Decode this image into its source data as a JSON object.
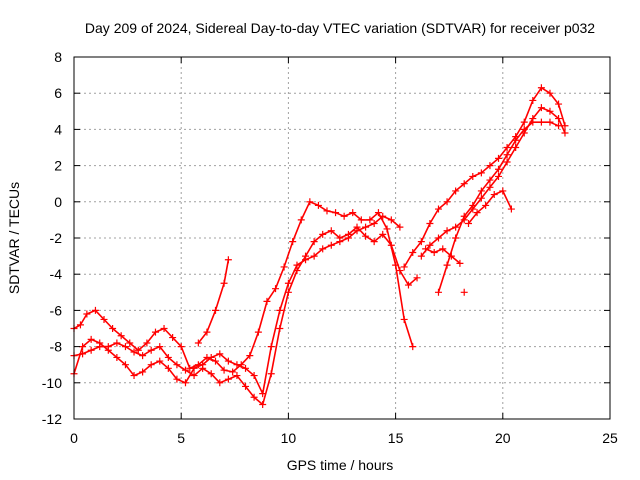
{
  "chart_data": {
    "type": "scatter",
    "title": "Day 209 of 2024, Sidereal Day-to-day VTEC variation (SDTVAR) for receiver p032",
    "xlabel": "GPS time / hours",
    "ylabel": "SDTVAR / TECUs",
    "xlim": [
      0,
      25
    ],
    "ylim": [
      -12,
      8
    ],
    "xticks": [
      0,
      5,
      10,
      15,
      20,
      25
    ],
    "yticks": [
      -12,
      -10,
      -8,
      -6,
      -4,
      -2,
      0,
      2,
      4,
      6,
      8
    ],
    "grid": true,
    "legend": "none",
    "marker": "plus",
    "series_color": "#ff0000",
    "series": [
      {
        "x": [
          0.0,
          0.3,
          0.6,
          1.0,
          1.4,
          1.8,
          2.2,
          2.6,
          3.0,
          3.4,
          3.8,
          4.2,
          4.6,
          5.0,
          5.4,
          5.8,
          6.2,
          6.6,
          7.0,
          7.4,
          7.8,
          8.2,
          8.6,
          9.0,
          9.4,
          9.8,
          10.2,
          10.6,
          11.0,
          11.4,
          11.8,
          12.2,
          12.6,
          13.0,
          13.4,
          13.8,
          14.2,
          14.6,
          15.0,
          15.4,
          15.8
        ],
        "y": [
          -7.0,
          -6.8,
          -6.2,
          -6.0,
          -6.5,
          -7.0,
          -7.4,
          -7.8,
          -8.2,
          -7.8,
          -7.2,
          -7.0,
          -7.5,
          -8.0,
          -9.2,
          -9.0,
          -8.6,
          -8.8,
          -9.3,
          -9.4,
          -9.0,
          -8.5,
          -7.2,
          -5.5,
          -4.8,
          -3.6,
          -2.2,
          -1.0,
          0.0,
          -0.2,
          -0.5,
          -0.6,
          -0.8,
          -0.6,
          -1.0,
          -1.0,
          -0.6,
          -1.5,
          -3.5,
          -6.5,
          -8.0
        ]
      },
      {
        "x": [
          0.0,
          0.4,
          0.8,
          1.2,
          1.6,
          2.0,
          2.4,
          2.8,
          3.2,
          3.6,
          4.0,
          4.4,
          4.8,
          5.2,
          5.6,
          6.0,
          6.4,
          6.8,
          7.2,
          7.6,
          8.0,
          8.4,
          8.8,
          9.2,
          9.6,
          10.0,
          10.4,
          10.8,
          11.2,
          11.6,
          12.0,
          12.4,
          12.8,
          13.2,
          13.6,
          14.0,
          14.4,
          14.8,
          15.2,
          15.6,
          16.0
        ],
        "y": [
          -8.5,
          -8.4,
          -8.2,
          -8.0,
          -8.0,
          -7.8,
          -8.0,
          -8.3,
          -8.5,
          -8.2,
          -8.0,
          -8.6,
          -9.0,
          -9.3,
          -9.6,
          -9.2,
          -9.5,
          -10.0,
          -9.8,
          -9.6,
          -10.2,
          -10.8,
          -11.2,
          -9.5,
          -7.0,
          -5.0,
          -3.8,
          -3.0,
          -2.2,
          -1.8,
          -1.6,
          -2.0,
          -1.8,
          -1.4,
          -1.9,
          -2.2,
          -1.8,
          -2.4,
          -3.8,
          -4.6,
          -4.2
        ]
      },
      {
        "x": [
          0.0,
          0.4,
          0.8,
          1.2,
          1.6,
          2.0,
          2.4,
          2.8,
          3.2,
          3.6,
          4.0,
          4.4,
          4.8,
          5.2,
          5.6,
          6.0,
          6.4,
          6.8,
          7.2,
          7.6,
          8.0,
          8.4,
          8.8,
          9.2,
          9.6,
          10.0,
          10.4,
          10.8,
          11.2,
          11.6,
          12.0,
          12.4,
          12.8,
          13.2,
          13.6,
          14.0,
          14.4,
          14.8,
          15.2
        ],
        "y": [
          -9.5,
          -8.0,
          -7.6,
          -7.8,
          -8.2,
          -8.6,
          -9.0,
          -9.6,
          -9.4,
          -9.0,
          -8.8,
          -9.2,
          -9.8,
          -10.0,
          -9.2,
          -9.0,
          -8.6,
          -8.4,
          -8.8,
          -9.0,
          -9.2,
          -9.6,
          -10.6,
          -8.0,
          -6.0,
          -4.5,
          -3.5,
          -3.2,
          -3.0,
          -2.6,
          -2.4,
          -2.2,
          -2.0,
          -1.6,
          -1.4,
          -1.2,
          -0.8,
          -1.0,
          -1.4
        ]
      },
      {
        "x": [
          5.8,
          6.2,
          6.6,
          7.0,
          7.2
        ],
        "y": [
          -7.8,
          -7.2,
          -6.0,
          -4.5,
          -3.2
        ]
      },
      {
        "x": [
          15.4,
          15.8,
          16.2,
          16.6,
          17.0,
          17.4,
          17.8,
          18.2,
          18.6,
          19.0,
          19.4,
          19.8,
          20.2,
          20.6,
          21.0,
          21.4,
          21.8,
          22.2,
          22.6,
          22.9
        ],
        "y": [
          -3.6,
          -2.8,
          -2.2,
          -1.2,
          -0.4,
          0.0,
          0.6,
          1.0,
          1.4,
          1.6,
          2.0,
          2.4,
          3.0,
          3.6,
          4.4,
          5.6,
          6.3,
          6.0,
          5.4,
          4.2
        ]
      },
      {
        "x": [
          16.2,
          16.6,
          17.0,
          17.4,
          17.8,
          18.2,
          18.6,
          19.0,
          19.4,
          19.8,
          20.2,
          20.6,
          21.0,
          21.4,
          21.8,
          22.2,
          22.6,
          22.9
        ],
        "y": [
          -3.0,
          -2.4,
          -2.0,
          -1.6,
          -1.4,
          -1.0,
          -0.4,
          0.2,
          0.8,
          1.4,
          2.2,
          3.0,
          3.8,
          4.6,
          5.2,
          5.0,
          4.6,
          3.8
        ]
      },
      {
        "x": [
          17.0,
          17.4,
          17.8,
          18.2,
          18.6,
          19.0,
          19.4,
          19.8,
          20.2,
          20.6,
          21.0,
          21.4,
          21.8,
          22.2,
          22.6
        ],
        "y": [
          -5.0,
          -3.5,
          -2.0,
          -0.8,
          -0.2,
          0.6,
          1.2,
          1.8,
          2.6,
          3.4,
          4.0,
          4.4,
          4.4,
          4.4,
          4.2
        ]
      },
      {
        "x": [
          16.4,
          16.8,
          17.2,
          17.6,
          18.0
        ],
        "y": [
          -2.6,
          -2.8,
          -2.6,
          -3.0,
          -3.4
        ]
      },
      {
        "x": [
          18.4,
          18.8,
          19.2,
          19.6,
          20.0,
          20.4
        ],
        "y": [
          -1.2,
          -0.6,
          -0.2,
          0.4,
          0.6,
          -0.4
        ]
      },
      {
        "x": [
          18.2
        ],
        "y": [
          -5.0
        ]
      }
    ]
  }
}
